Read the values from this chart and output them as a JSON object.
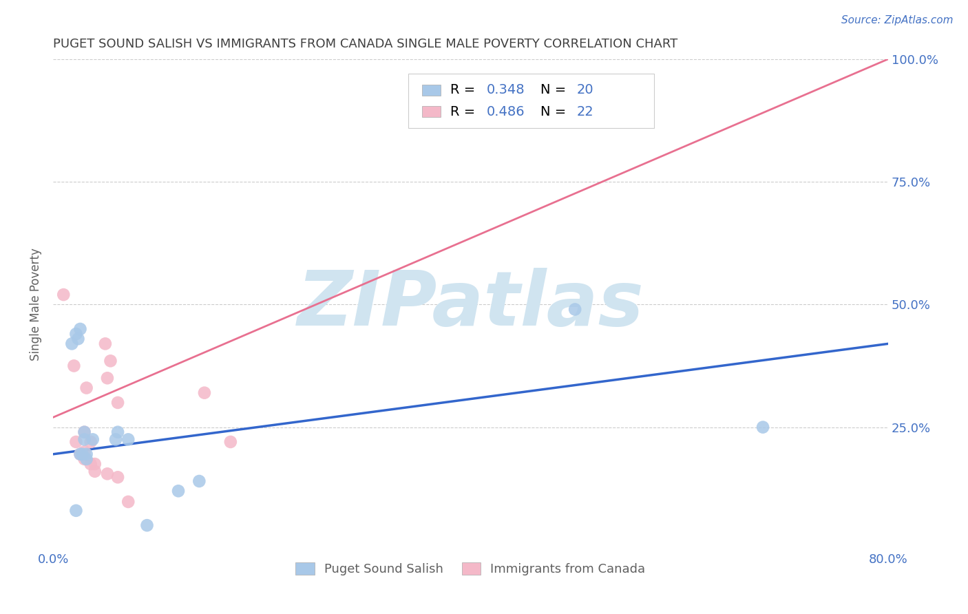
{
  "title": "PUGET SOUND SALISH VS IMMIGRANTS FROM CANADA SINGLE MALE POVERTY CORRELATION CHART",
  "source": "Source: ZipAtlas.com",
  "ylabel": "Single Male Poverty",
  "xlim": [
    0.0,
    0.8
  ],
  "ylim": [
    0.0,
    1.0
  ],
  "blue_color": "#a8c8e8",
  "pink_color": "#f4b8c8",
  "blue_line_color": "#3366cc",
  "pink_line_color": "#e87090",
  "R_blue": 0.348,
  "N_blue": 20,
  "R_pink": 0.486,
  "N_pink": 22,
  "blue_scatter_x": [
    0.018,
    0.022,
    0.024,
    0.026,
    0.026,
    0.028,
    0.03,
    0.03,
    0.032,
    0.032,
    0.038,
    0.06,
    0.062,
    0.072,
    0.09,
    0.12,
    0.14,
    0.5,
    0.68,
    0.022
  ],
  "blue_scatter_y": [
    0.42,
    0.44,
    0.43,
    0.45,
    0.195,
    0.195,
    0.225,
    0.24,
    0.195,
    0.185,
    0.225,
    0.225,
    0.24,
    0.225,
    0.05,
    0.12,
    0.14,
    0.49,
    0.25,
    0.08
  ],
  "pink_scatter_x": [
    0.05,
    0.055,
    0.02,
    0.022,
    0.026,
    0.028,
    0.03,
    0.03,
    0.03,
    0.032,
    0.036,
    0.036,
    0.04,
    0.04,
    0.052,
    0.052,
    0.062,
    0.062,
    0.072,
    0.145,
    0.17,
    0.01
  ],
  "pink_scatter_y": [
    0.42,
    0.385,
    0.375,
    0.22,
    0.195,
    0.195,
    0.185,
    0.2,
    0.24,
    0.33,
    0.22,
    0.175,
    0.175,
    0.16,
    0.35,
    0.155,
    0.3,
    0.148,
    0.098,
    0.32,
    0.22,
    0.52
  ],
  "blue_line_x": [
    0.0,
    0.8
  ],
  "blue_line_y": [
    0.195,
    0.42
  ],
  "pink_line_x": [
    0.0,
    0.8
  ],
  "pink_line_y": [
    0.27,
    1.0
  ],
  "watermark": "ZIPatlas",
  "watermark_color": "#d0e4f0",
  "legend_text_color": "#4472c4",
  "title_color": "#404040",
  "axis_label_color": "#606060",
  "tick_label_color": "#4472c4",
  "background_color": "#ffffff",
  "grid_color": "#cccccc"
}
